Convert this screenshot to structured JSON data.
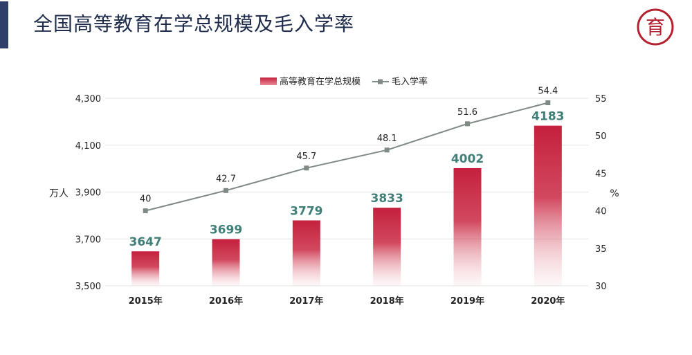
{
  "header": {
    "title": "全国高等教育在学总规模及毛入学率",
    "logo_icon": "logo-seal-icon",
    "logo_text": "育"
  },
  "colors": {
    "bar": "#c4203d",
    "line": "#7f8a84",
    "bar_label": "#3f7f78",
    "title": "#1e2b4a",
    "accent": "#2f3f6a"
  },
  "chart_data": {
    "type": "bar",
    "categories": [
      "2015年",
      "2016年",
      "2017年",
      "2018年",
      "2019年",
      "2020年"
    ],
    "series": [
      {
        "name": "高等教育在学总规模",
        "type": "bar",
        "axis": "left",
        "values": [
          3647,
          3699,
          3779,
          3833,
          4002,
          4183
        ],
        "labels": [
          "3647",
          "3699",
          "3779",
          "3833",
          "4002",
          "4183"
        ]
      },
      {
        "name": "毛入学率",
        "type": "line",
        "axis": "right",
        "values": [
          40,
          42.7,
          45.7,
          48.1,
          51.6,
          54.4
        ],
        "labels": [
          "40",
          "42.7",
          "45.7",
          "48.1",
          "51.6",
          "54.4"
        ]
      }
    ],
    "y_left": {
      "label": "万人",
      "min": 3500,
      "max": 4300,
      "ticks": [
        3500,
        3700,
        3900,
        4100,
        4300
      ],
      "tick_labels": [
        "3,500",
        "3,700",
        "3,900",
        "4,100",
        "4,300"
      ]
    },
    "y_right": {
      "label": "%",
      "min": 30,
      "max": 55,
      "ticks": [
        30,
        35,
        40,
        45,
        50,
        55
      ],
      "tick_labels": [
        "30",
        "35",
        "40",
        "45",
        "50",
        "55"
      ]
    },
    "grid": true,
    "legend_position": "top-center"
  }
}
